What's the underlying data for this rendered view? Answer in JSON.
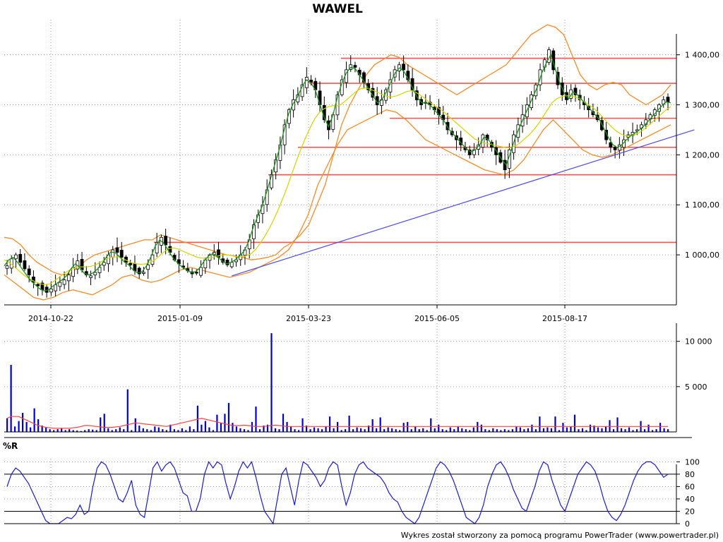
{
  "chart_data": [
    {
      "type": "candlestick",
      "title": "WAWEL",
      "x_tick_labels": [
        "2014-10-22",
        "2015-01-09",
        "2015-03-23",
        "2015-06-05",
        "2015-08-17"
      ],
      "y_tick_labels": [
        "1 000,00",
        "1 100,00",
        "1 200,00",
        "1 300,00",
        "1 400,00"
      ],
      "y_ticks": [
        1000,
        1100,
        1200,
        1300,
        1400
      ],
      "ylim": [
        900,
        1470
      ],
      "grid": true,
      "colors": {
        "candle": "#000000",
        "bollinger": "#f28c28",
        "ma_fast": "#1a8f1a",
        "ma_slow": "#d4d400",
        "support_resistance": "#ff5050",
        "trendline": "#4a4ae8"
      },
      "horizontal_levels": [
        1393,
        1343,
        1273,
        1215,
        1160,
        1025
      ],
      "close": [
        978,
        992,
        1000,
        985,
        972,
        960,
        945,
        938,
        930,
        925,
        932,
        940,
        945,
        950,
        960,
        975,
        988,
        970,
        960,
        958,
        965,
        975,
        985,
        1000,
        1010,
        1005,
        995,
        985,
        980,
        968,
        962,
        965,
        980,
        1000,
        1025,
        1035,
        1020,
        1005,
        990,
        982,
        975,
        968,
        962,
        965,
        975,
        990,
        1000,
        1005,
        995,
        985,
        980,
        985,
        990,
        1000,
        1010,
        1030,
        1060,
        1080,
        1100,
        1130,
        1160,
        1190,
        1220,
        1260,
        1290,
        1310,
        1320,
        1340,
        1355,
        1345,
        1330,
        1300,
        1270,
        1250,
        1280,
        1320,
        1350,
        1370,
        1380,
        1375,
        1360,
        1345,
        1330,
        1315,
        1300,
        1310,
        1330,
        1350,
        1370,
        1380,
        1370,
        1350,
        1330,
        1310,
        1300,
        1305,
        1300,
        1290,
        1280,
        1270,
        1250,
        1240,
        1230,
        1220,
        1210,
        1200,
        1210,
        1220,
        1240,
        1230,
        1215,
        1200,
        1185,
        1170,
        1210,
        1240,
        1260,
        1280,
        1300,
        1320,
        1340,
        1370,
        1390,
        1410,
        1370,
        1340,
        1320,
        1310,
        1330,
        1320,
        1310,
        1300,
        1290,
        1280,
        1270,
        1250,
        1230,
        1215,
        1210,
        1220,
        1230,
        1240,
        1245,
        1250,
        1260,
        1270,
        1280,
        1290,
        1300,
        1310,
        1305
      ],
      "trendline": {
        "from": [
          51,
          958
        ],
        "to": [
          156,
          1250
        ]
      },
      "bollinger_upper": [
        1035,
        1032,
        1020,
        1000,
        985,
        975,
        965,
        960,
        962,
        975,
        990,
        1000,
        1005,
        1010,
        1015,
        1020,
        1025,
        1030,
        1030,
        1040,
        1035,
        1030,
        1025,
        1020,
        1015,
        1010,
        1005,
        1000,
        998,
        995,
        990,
        992,
        995,
        1000,
        1015,
        1025,
        1040,
        1060,
        1100,
        1140,
        1200,
        1260,
        1300,
        1330,
        1360,
        1380,
        1390,
        1400,
        1395,
        1380,
        1370,
        1360,
        1350,
        1340,
        1330,
        1320,
        1330,
        1340,
        1350,
        1360,
        1370,
        1380,
        1400,
        1420,
        1440,
        1450,
        1460,
        1455,
        1440,
        1400,
        1360,
        1340,
        1330,
        1340,
        1345,
        1340,
        1320,
        1310,
        1300,
        1310,
        1320,
        1340
      ],
      "bollinger_lower": [
        960,
        945,
        930,
        915,
        910,
        915,
        925,
        930,
        925,
        920,
        930,
        940,
        955,
        960,
        950,
        945,
        950,
        960,
        970,
        975,
        970,
        965,
        960,
        955,
        960,
        965,
        975,
        985,
        995,
        1010,
        1040,
        1080,
        1140,
        1180,
        1220,
        1250,
        1260,
        1270,
        1280,
        1290,
        1285,
        1270,
        1250,
        1230,
        1220,
        1210,
        1200,
        1190,
        1180,
        1170,
        1165,
        1160,
        1170,
        1190,
        1220,
        1250,
        1270,
        1250,
        1230,
        1210,
        1200,
        1195,
        1200,
        1210,
        1220,
        1230,
        1240,
        1250,
        1260
      ],
      "ma_fast": [
        978,
        990,
        995,
        985,
        972,
        960,
        948,
        940,
        932,
        928,
        930,
        938,
        944,
        950,
        958,
        972,
        982,
        975,
        963,
        960,
        964,
        972,
        982,
        996,
        1006,
        1004,
        996,
        986,
        980,
        970,
        964,
        966,
        978,
        996,
        1018,
        1030,
        1022,
        1008,
        994,
        984,
        976,
        970,
        965,
        966,
        974,
        988,
        998,
        1003,
        996,
        988,
        982,
        985,
        990,
        998,
        1008,
        1026,
        1054,
        1076,
        1096,
        1124,
        1154,
        1184,
        1214,
        1250,
        1282,
        1302,
        1316,
        1336,
        1350,
        1344,
        1330,
        1302,
        1275,
        1256,
        1280,
        1316,
        1344,
        1364,
        1375,
        1372,
        1360,
        1346,
        1332,
        1318,
        1304,
        1310,
        1326,
        1345,
        1364,
        1374,
        1366,
        1350,
        1332,
        1314,
        1304,
        1304,
        1298,
        1288,
        1278,
        1268,
        1252,
        1242,
        1232,
        1222,
        1212,
        1206,
        1210,
        1220,
        1236,
        1230,
        1218,
        1204,
        1190,
        1180,
        1206,
        1234,
        1256,
        1276,
        1296,
        1316,
        1336,
        1364,
        1384,
        1400,
        1372,
        1344,
        1324,
        1312,
        1326,
        1320,
        1310,
        1300,
        1290,
        1280,
        1270,
        1252,
        1234,
        1220,
        1214,
        1220,
        1230,
        1238,
        1244,
        1250,
        1258,
        1268,
        1278,
        1288,
        1298,
        1306,
        1304
      ],
      "ma_slow": [
        990,
        985,
        978,
        970,
        962,
        955,
        950,
        945,
        942,
        940,
        942,
        948,
        955,
        962,
        968,
        972,
        975,
        976,
        976,
        977,
        980,
        985,
        990,
        994,
        996,
        996,
        992,
        988,
        984,
        982,
        981,
        982,
        985,
        990,
        998,
        1006,
        1012,
        1014,
        1012,
        1008,
        1004,
        1000,
        996,
        994,
        993,
        994,
        996,
        998,
        1000,
        1000,
        998,
        996,
        996,
        998,
        1002,
        1010,
        1022,
        1036,
        1052,
        1070,
        1090,
        1112,
        1136,
        1162,
        1188,
        1212,
        1234,
        1254,
        1272,
        1284,
        1292,
        1296,
        1298,
        1298,
        1302,
        1310,
        1318,
        1326,
        1332,
        1334,
        1332,
        1328,
        1324,
        1320,
        1316,
        1316,
        1318,
        1322,
        1326,
        1328,
        1326,
        1320,
        1314,
        1306,
        1300,
        1294,
        1288,
        1280,
        1272,
        1264,
        1256,
        1248,
        1240,
        1232,
        1228,
        1224,
        1222,
        1220,
        1218,
        1216,
        1214,
        1214,
        1218,
        1224,
        1232,
        1240,
        1250,
        1262,
        1276,
        1290,
        1304,
        1312,
        1316,
        1318,
        1318,
        1316,
        1312,
        1306,
        1300,
        1294,
        1286,
        1276,
        1266,
        1256,
        1248,
        1242,
        1238,
        1238,
        1240,
        1244,
        1250,
        1258,
        1266,
        1274,
        1282,
        1290,
        1296
      ]
    },
    {
      "type": "bar",
      "title": "",
      "y_tick_labels": [
        "5 000",
        "10 000"
      ],
      "y_ticks": [
        5000,
        10000
      ],
      "ylim": [
        0,
        12000
      ],
      "colors": {
        "bars": "#0000cc",
        "average": "#ff4040"
      },
      "values": [
        1500,
        7400,
        600,
        1200,
        2100,
        1100,
        500,
        2600,
        1400,
        700,
        500,
        300,
        200,
        300,
        400,
        200,
        300,
        200,
        150,
        100,
        200,
        300,
        250,
        200,
        1600,
        2000,
        400,
        200,
        300,
        500,
        300,
        4700,
        200,
        1500,
        700,
        400,
        300,
        200,
        600,
        500,
        300,
        200,
        800,
        300,
        200,
        400,
        200,
        600,
        300,
        2900,
        800,
        1200,
        500,
        200,
        1900,
        1000,
        2000,
        3200,
        1000,
        600,
        400,
        300,
        200,
        1100,
        2800,
        300,
        700,
        800,
        10900,
        400,
        300,
        2000,
        1100,
        600,
        300,
        200,
        1500,
        700,
        300,
        500,
        400,
        300,
        600,
        1700,
        400,
        1100,
        200,
        300,
        1800,
        300,
        500,
        400,
        300,
        700,
        1400,
        400,
        1600,
        300,
        500,
        400,
        300,
        200,
        1000,
        1100,
        300,
        600,
        300,
        400,
        200,
        1500,
        400,
        800,
        300,
        200,
        500,
        300,
        600,
        400,
        300,
        200,
        500,
        1100,
        800,
        300,
        200,
        400,
        300,
        200,
        300,
        200,
        300,
        600,
        500,
        300,
        400,
        800,
        300,
        1700,
        400,
        500,
        400,
        1700,
        200,
        1000,
        500,
        600,
        1900,
        300,
        400,
        200,
        800,
        700,
        500,
        400,
        600,
        1300,
        300,
        1600,
        400,
        300,
        500,
        200,
        300,
        1200,
        300,
        800,
        200,
        300,
        1000,
        400,
        300
      ],
      "average": [
        1500,
        1700,
        1700,
        1700,
        1500,
        1300,
        1100,
        900,
        700,
        600,
        500,
        450,
        400,
        400,
        400,
        400,
        400,
        450,
        500,
        600,
        700,
        700,
        650,
        600,
        550,
        500,
        500,
        500,
        550,
        600,
        700,
        800,
        900,
        1000,
        950,
        900,
        850,
        800,
        750,
        700,
        650,
        600,
        700,
        800,
        900,
        1000,
        1100,
        1200,
        1300,
        1400,
        1500,
        1400,
        1300,
        1200,
        1100,
        1000,
        900,
        800,
        700,
        700,
        700,
        750,
        700,
        650,
        600,
        600,
        600,
        650,
        700,
        750,
        700,
        650,
        600,
        600,
        600,
        600,
        600,
        600,
        600,
        600,
        600,
        600,
        600,
        600,
        600,
        600,
        600,
        600,
        600,
        600,
        600,
        600,
        600,
        600,
        600,
        600,
        600,
        600,
        600,
        600,
        600,
        600,
        600,
        600,
        600,
        600,
        600,
        600,
        600,
        600,
        600,
        600,
        600,
        600,
        600,
        600,
        600,
        600,
        600,
        600,
        600,
        600,
        600,
        600,
        600,
        600,
        600,
        600,
        600,
        600,
        600,
        600,
        600,
        600,
        600,
        600,
        600,
        600,
        600,
        600,
        600,
        600,
        600,
        600,
        600,
        600,
        600,
        600,
        600,
        600,
        600,
        600,
        600,
        600,
        600,
        600,
        600,
        600,
        600,
        600,
        600,
        600,
        600,
        600,
        600,
        600,
        600,
        600,
        600,
        600,
        600
      ]
    },
    {
      "type": "line",
      "title": "%R",
      "y_tick_labels": [
        "0",
        "20",
        "40",
        "60",
        "80",
        "100"
      ],
      "y_ticks": [
        0,
        20,
        40,
        60,
        80,
        100
      ],
      "ylim": [
        0,
        105
      ],
      "reference_lines": [
        20,
        80
      ],
      "colors": {
        "line": "#1a1acc",
        "reference": "#000000"
      },
      "values": [
        60,
        80,
        90,
        85,
        75,
        65,
        50,
        35,
        20,
        5,
        0,
        0,
        0,
        5,
        10,
        8,
        15,
        30,
        15,
        20,
        60,
        90,
        100,
        95,
        80,
        60,
        40,
        35,
        50,
        70,
        30,
        15,
        10,
        50,
        90,
        100,
        85,
        95,
        100,
        90,
        70,
        50,
        45,
        20,
        20,
        40,
        80,
        100,
        90,
        100,
        95,
        65,
        40,
        60,
        85,
        100,
        90,
        100,
        75,
        45,
        20,
        10,
        0,
        40,
        80,
        90,
        60,
        30,
        70,
        100,
        95,
        85,
        75,
        60,
        70,
        90,
        100,
        95,
        60,
        30,
        50,
        80,
        95,
        100,
        90,
        85,
        80,
        75,
        65,
        50,
        40,
        35,
        20,
        10,
        5,
        0,
        10,
        30,
        50,
        70,
        90,
        100,
        95,
        85,
        70,
        50,
        30,
        10,
        5,
        0,
        10,
        30,
        60,
        80,
        95,
        100,
        90,
        75,
        55,
        40,
        25,
        20,
        40,
        60,
        85,
        100,
        95,
        70,
        50,
        30,
        20,
        40,
        60,
        80,
        90,
        100,
        95,
        85,
        65,
        40,
        20,
        10,
        5,
        15,
        30,
        50,
        70,
        85,
        95,
        100,
        100,
        95,
        85,
        75,
        80
      ]
    }
  ],
  "footer": {
    "credit": "Wykres został stworzony za pomocą programu PowerTrader (www.powertrader.pl)"
  }
}
